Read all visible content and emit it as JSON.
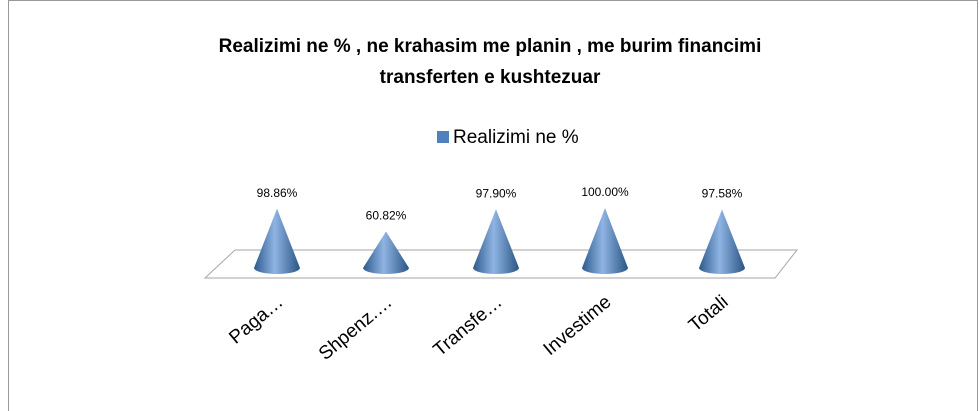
{
  "chart_data": {
    "type": "cone",
    "title": "Realizimi ne % , ne krahasim me planin , me burim financimi transferten e kushtezuar",
    "categories": [
      "Paga…",
      "Shpenz.…",
      "Transfe…",
      "Investime",
      "Totali"
    ],
    "series": [
      {
        "name": "Realizimi ne %",
        "color": "#4f81bd",
        "values": [
          98.86,
          60.82,
          97.9,
          100.0,
          97.58
        ],
        "value_labels": [
          "98.86%",
          "60.82%",
          "97.90%",
          "100.00%",
          "97.58%"
        ]
      }
    ]
  }
}
